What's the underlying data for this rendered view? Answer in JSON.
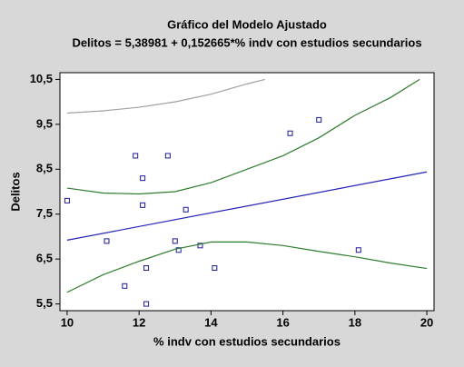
{
  "chart_data": {
    "type": "scatter",
    "title": "Gráfico del Modelo Ajustado",
    "subtitle": "Delitos = 5,38981 + 0,152665*% indv con estudios secundarios",
    "x_label": "% indv con estudios secundarios",
    "y_label": "Delitos",
    "xlim": [
      9.8,
      20.2
    ],
    "ylim": [
      5.35,
      10.65
    ],
    "xticks": [
      10,
      12,
      14,
      16,
      18,
      20
    ],
    "yticks": [
      {
        "value": 5.5,
        "label": "5,5"
      },
      {
        "value": 6.5,
        "label": "6,5"
      },
      {
        "value": 7.5,
        "label": "7,5"
      },
      {
        "value": 8.5,
        "label": "8,5"
      },
      {
        "value": 9.5,
        "label": "9,5"
      },
      {
        "value": 10.5,
        "label": "10,5"
      }
    ],
    "series": [
      {
        "type": "scatter",
        "color": "#1a1a9a",
        "x": [
          10.0,
          11.1,
          11.6,
          11.9,
          12.1,
          12.1,
          12.2,
          12.2,
          12.8,
          13.0,
          13.1,
          13.3,
          13.7,
          14.1,
          16.2,
          17.0,
          18.1
        ],
        "values": [
          7.8,
          6.9,
          5.9,
          8.8,
          8.3,
          7.7,
          6.3,
          5.5,
          8.8,
          6.9,
          6.7,
          7.6,
          6.8,
          6.3,
          9.3,
          9.6,
          6.7
        ]
      },
      {
        "type": "line",
        "color": "#2424b8",
        "x": [
          10,
          20
        ],
        "values": [
          6.92,
          8.44
        ]
      },
      {
        "type": "line",
        "color": "#2e7d2e",
        "x": [
          10,
          11,
          12,
          13,
          14,
          15,
          16,
          17,
          18,
          19,
          19.8
        ],
        "values": [
          8.08,
          7.97,
          7.95,
          8.0,
          8.2,
          8.5,
          8.8,
          9.2,
          9.7,
          10.1,
          10.5
        ]
      },
      {
        "type": "line",
        "color": "#2e7d2e",
        "x": [
          10,
          11,
          12,
          13,
          14,
          15,
          16,
          17,
          18,
          19,
          20
        ],
        "values": [
          5.76,
          6.15,
          6.45,
          6.72,
          6.88,
          6.88,
          6.8,
          6.67,
          6.55,
          6.41,
          6.29
        ]
      },
      {
        "type": "line",
        "color": "#a0a0a0",
        "x": [
          10,
          11,
          12,
          13,
          14,
          15,
          15.5
        ],
        "values": [
          9.75,
          9.8,
          9.88,
          10.0,
          10.17,
          10.4,
          10.5
        ]
      }
    ]
  }
}
